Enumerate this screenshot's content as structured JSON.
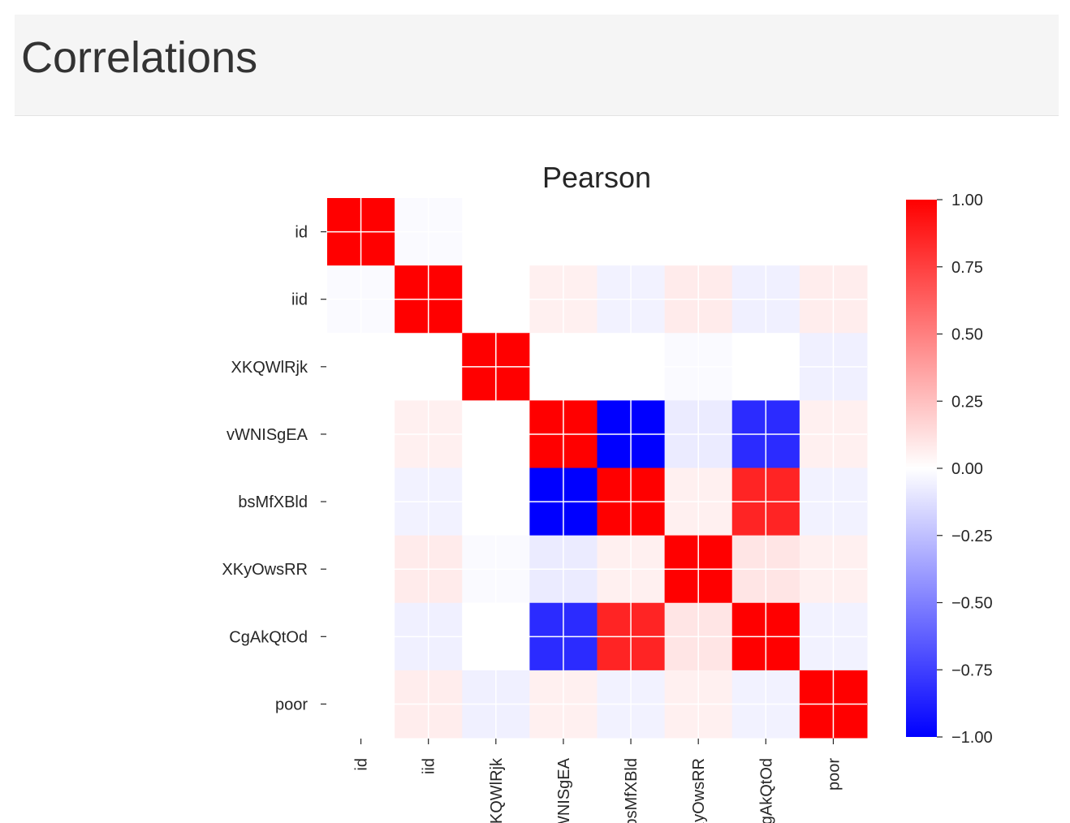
{
  "page": {
    "heading": "Correlations"
  },
  "chart_data": {
    "type": "heatmap",
    "title": "Pearson",
    "xlabel": "",
    "ylabel": "",
    "labels": [
      "id",
      "iid",
      "XKQWlRjk",
      "vWNISgEA",
      "bsMfXBld",
      "XKyOwsRR",
      "CgAkQtOd",
      "poor"
    ],
    "matrix": [
      [
        1.0,
        -0.02,
        0.0,
        0.0,
        0.0,
        0.0,
        0.0,
        0.0
      ],
      [
        -0.02,
        1.0,
        0.0,
        0.06,
        -0.05,
        0.08,
        -0.06,
        0.07
      ],
      [
        0.0,
        0.0,
        1.0,
        0.0,
        0.0,
        -0.02,
        0.0,
        -0.06
      ],
      [
        0.0,
        0.06,
        0.0,
        1.0,
        -1.0,
        -0.08,
        -0.83,
        0.06
      ],
      [
        0.0,
        -0.05,
        0.0,
        -1.0,
        1.0,
        0.06,
        0.86,
        -0.05
      ],
      [
        0.0,
        0.08,
        -0.02,
        -0.08,
        0.06,
        1.0,
        0.1,
        0.06
      ],
      [
        0.0,
        -0.06,
        0.0,
        -0.83,
        0.86,
        0.1,
        1.0,
        -0.05
      ],
      [
        0.0,
        0.07,
        -0.06,
        0.06,
        -0.05,
        0.06,
        -0.05,
        1.0
      ]
    ],
    "colormap": "bwr",
    "vmin": -1.0,
    "vmax": 1.0,
    "colorbar_ticks": [
      "1.00",
      "0.75",
      "0.50",
      "0.25",
      "0.00",
      "−0.25",
      "−0.50",
      "−0.75",
      "−1.00"
    ],
    "colorbar_values": [
      1.0,
      0.75,
      0.5,
      0.25,
      0.0,
      -0.25,
      -0.5,
      -0.75,
      -1.0
    ],
    "colors": {
      "low": "#0000ff",
      "mid": "#ffffff",
      "high": "#ff0000"
    }
  }
}
